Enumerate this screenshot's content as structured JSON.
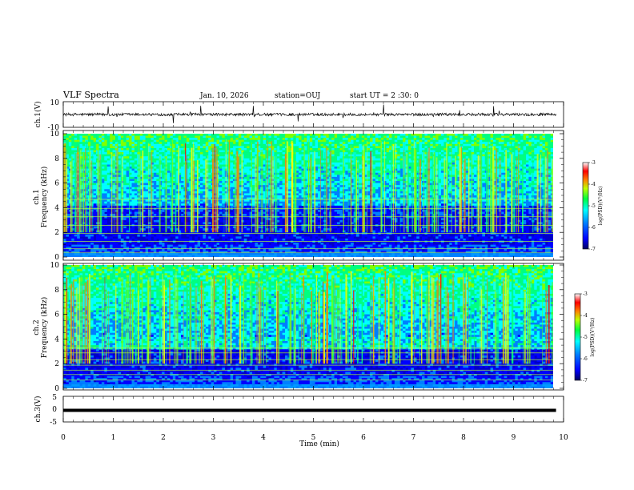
{
  "header": {
    "title": "VLF Spectra",
    "date": "Jan. 10, 2026",
    "station": "station=OUJ",
    "start_ut": "start UT =  2 :30: 0"
  },
  "chart_data": [
    {
      "type": "line",
      "panel": "ch1-waveform",
      "title": "",
      "xlabel": "",
      "ylabel": "ch.1(V)",
      "xlim": [
        0,
        10
      ],
      "ylim": [
        -10,
        10
      ],
      "ytick_labels": [
        "10",
        "-10"
      ],
      "series": [
        {
          "name": "ch.1",
          "x_range": [
            0,
            9.85
          ],
          "baseline": 0
        }
      ]
    },
    {
      "type": "heatmap",
      "panel": "ch1-spectrogram",
      "ylabel": "ch.1\nFrequency (kHz)",
      "ylabel_line1": "ch.1",
      "ylabel_line2": "Frequency (kHz)",
      "xlim": [
        0,
        9.85
      ],
      "ylim": [
        0,
        10
      ],
      "ytick_labels": [
        "0",
        "2",
        "4",
        "6",
        "8",
        "10"
      ],
      "colorbar": {
        "label": "log(PSD)(V²/Hz)",
        "range": [
          -7,
          -3
        ],
        "tick_labels": [
          "-3",
          "-4",
          "-5",
          "-6",
          "-7"
        ]
      }
    },
    {
      "type": "heatmap",
      "panel": "ch2-spectrogram",
      "ylabel_line1": "ch.2",
      "ylabel_line2": "Frequency (kHz)",
      "xlim": [
        0,
        9.85
      ],
      "ylim": [
        0,
        10
      ],
      "ytick_labels": [
        "0",
        "2",
        "4",
        "6",
        "8",
        "10"
      ],
      "colorbar": {
        "label": "log(PSD)(V²/Hz)",
        "range": [
          -7,
          -3
        ],
        "tick_labels": [
          "-3",
          "-4",
          "-5",
          "-6",
          "-7"
        ]
      }
    },
    {
      "type": "line",
      "panel": "ch3-waveform",
      "ylabel": "ch.3(V)",
      "xlim": [
        0,
        10
      ],
      "ylim": [
        -5,
        5
      ],
      "ytick_labels": [
        "5",
        "0",
        "-5"
      ],
      "series": [
        {
          "name": "ch.3",
          "x": [
            0,
            9.85
          ],
          "y": [
            -0.5,
            -0.5
          ]
        }
      ]
    }
  ],
  "x_axis": {
    "label": "Time (min)",
    "range": [
      0,
      10
    ],
    "tick_labels": [
      "0",
      "1",
      "2",
      "3",
      "4",
      "5",
      "6",
      "7",
      "8",
      "9",
      "10"
    ]
  },
  "colors": {
    "colormap": [
      "#000080",
      "#0000ff",
      "#0080ff",
      "#00ffff",
      "#00ff80",
      "#80ff00",
      "#ffff00",
      "#ff8000",
      "#ff0000",
      "#ffffff"
    ]
  }
}
